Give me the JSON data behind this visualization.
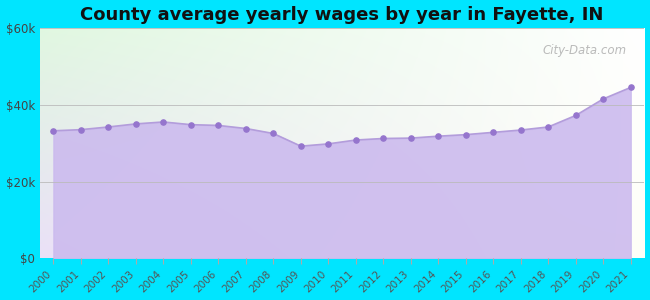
{
  "title": "County average yearly wages by year in Fayette, IN",
  "years": [
    2000,
    2001,
    2002,
    2003,
    2004,
    2005,
    2006,
    2007,
    2008,
    2009,
    2010,
    2011,
    2012,
    2013,
    2014,
    2015,
    2016,
    2017,
    2018,
    2019,
    2020,
    2021
  ],
  "wages": [
    33200,
    33500,
    34200,
    35000,
    35500,
    34800,
    34600,
    33800,
    32500,
    29200,
    29800,
    30800,
    31200,
    31300,
    31800,
    32200,
    32800,
    33400,
    34200,
    37200,
    41500,
    44500
  ],
  "line_color": "#b39ddb",
  "fill_color": "#ccbbee",
  "marker_color": "#9575cd",
  "background_outer": "#00e5ff",
  "ylim": [
    0,
    60000
  ],
  "yticks": [
    0,
    20000,
    40000,
    60000
  ],
  "ytick_labels": [
    "$0",
    "$20k",
    "$40k",
    "$60k"
  ],
  "title_fontsize": 13,
  "watermark": "City-Data.com",
  "grid_color": "#cccccc"
}
